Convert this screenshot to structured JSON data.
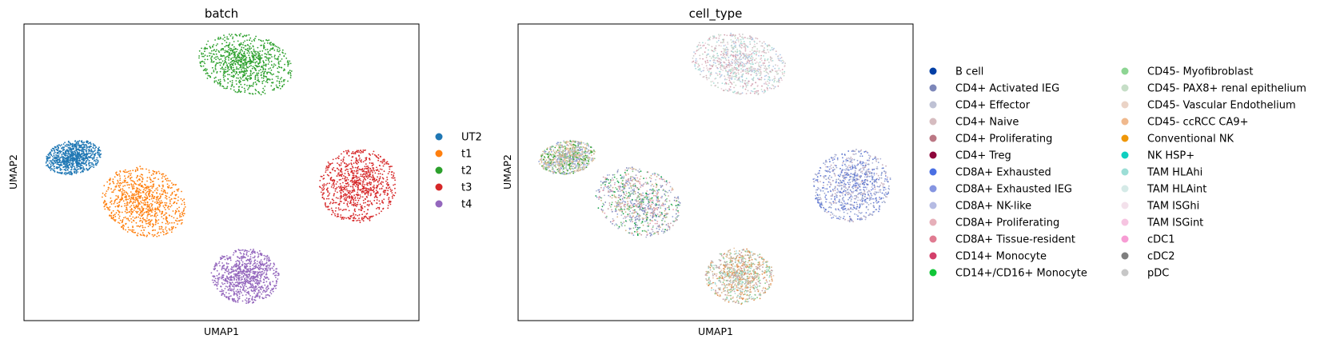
{
  "chart_data": [
    {
      "type": "scatter",
      "title": "batch",
      "xlabel": "UMAP1",
      "ylabel": "UMAP2",
      "grid": false,
      "ticks": false,
      "legend_position": "right",
      "xlim": [
        -10,
        10
      ],
      "ylim": [
        -10,
        10
      ],
      "series": [
        {
          "name": "UT2",
          "color": "#1f77b4",
          "center": [
            -7.5,
            1.0
          ],
          "spread": [
            1.45,
            1.1
          ],
          "tilt": 0.35
        },
        {
          "name": "t1",
          "color": "#ff7f0e",
          "center": [
            -3.9,
            -2.0
          ],
          "spread": [
            2.0,
            2.45
          ],
          "tilt": 0.5
        },
        {
          "name": "t2",
          "color": "#2ca02c",
          "center": [
            1.2,
            7.3
          ],
          "spread": [
            2.45,
            1.95
          ],
          "tilt": -0.45
        },
        {
          "name": "t3",
          "color": "#d62728",
          "center": [
            6.9,
            -0.9
          ],
          "spread": [
            1.95,
            2.45
          ],
          "tilt": -0.1
        },
        {
          "name": "t4",
          "color": "#9467bd",
          "center": [
            1.2,
            -7.0
          ],
          "spread": [
            1.7,
            1.85
          ],
          "tilt": 0.1
        }
      ]
    },
    {
      "type": "scatter",
      "title": "cell_type",
      "xlabel": "UMAP1",
      "ylabel": "UMAP2",
      "grid": false,
      "ticks": false,
      "legend_position": "right",
      "legend_columns": 2,
      "xlim": [
        -10,
        10
      ],
      "ylim": [
        -10,
        10
      ],
      "clusters": [
        {
          "center": [
            -7.5,
            1.0
          ],
          "spread": [
            1.45,
            1.1
          ],
          "tilt": 0.35,
          "palette": [
            "#e8c4a0",
            "#c8b69a",
            "#8ac98a",
            "#8c9fd4",
            "#33a02c",
            "#dcb58f",
            "#b7c7e0"
          ]
        },
        {
          "center": [
            -3.9,
            -2.0
          ],
          "spread": [
            2.0,
            2.45
          ],
          "tilt": 0.5,
          "palette": [
            "#8c9fd4",
            "#c8a0a8",
            "#8ac98a",
            "#d4b48c",
            "#b0b8d0",
            "#e8a0b0",
            "#7d85b8",
            "#17a34a"
          ]
        },
        {
          "center": [
            1.2,
            7.3
          ],
          "spread": [
            2.45,
            1.95
          ],
          "tilt": -0.45,
          "palette": [
            "#c5dcc8",
            "#a6dcd6",
            "#d8b8c0",
            "#c9c9c9",
            "#e8d0d8",
            "#b0c8e8",
            "#d4a0b0"
          ]
        },
        {
          "center": [
            6.9,
            -0.9
          ],
          "spread": [
            1.95,
            2.45
          ],
          "tilt": -0.1,
          "palette": [
            "#6a7fd8",
            "#8c9fd4",
            "#a0a8c8",
            "#b3b8dc",
            "#5570d0",
            "#c8b0c0"
          ]
        },
        {
          "center": [
            1.2,
            -7.0
          ],
          "spread": [
            1.7,
            1.85
          ],
          "tilt": 0.1,
          "palette": [
            "#d4b48c",
            "#e8c4a0",
            "#8ac98a",
            "#c8a0a8",
            "#b0b8b0",
            "#e09050",
            "#a6dcd6"
          ]
        }
      ],
      "legend": [
        {
          "name": "B cell",
          "color": "#023fa5"
        },
        {
          "name": "CD4+ Activated IEG",
          "color": "#7d87b9"
        },
        {
          "name": "CD4+ Effector",
          "color": "#bec1d4"
        },
        {
          "name": "CD4+ Naive",
          "color": "#d6bcc0"
        },
        {
          "name": "CD4+ Proliferating",
          "color": "#bb7784"
        },
        {
          "name": "CD4+ Treg",
          "color": "#8e063b"
        },
        {
          "name": "CD8A+ Exhausted",
          "color": "#4a6fe3"
        },
        {
          "name": "CD8A+ Exhausted IEG",
          "color": "#8595e1"
        },
        {
          "name": "CD8A+ NK-like",
          "color": "#b5bbe3"
        },
        {
          "name": "CD8A+ Proliferating",
          "color": "#e6afb9"
        },
        {
          "name": "CD8A+ Tissue-resident",
          "color": "#e07b91"
        },
        {
          "name": "CD14+ Monocyte",
          "color": "#d33f6a"
        },
        {
          "name": "CD14+/CD16+ Monocyte",
          "color": "#11c638"
        },
        {
          "name": "CD45- Myofibroblast",
          "color": "#8dd593"
        },
        {
          "name": "CD45- PAX8+ renal epithelium",
          "color": "#c6dec7"
        },
        {
          "name": "CD45- Vascular Endothelium",
          "color": "#ead3c6"
        },
        {
          "name": "CD45- ccRCC CA9+",
          "color": "#f0b98d"
        },
        {
          "name": "Conventional NK",
          "color": "#ef9708"
        },
        {
          "name": "NK HSP+",
          "color": "#0fcfc0"
        },
        {
          "name": "TAM HLAhi",
          "color": "#9cded6"
        },
        {
          "name": "TAM HLAint",
          "color": "#d5eae7"
        },
        {
          "name": "TAM ISGhi",
          "color": "#f3e1eb"
        },
        {
          "name": "TAM ISGint",
          "color": "#f6c4e1"
        },
        {
          "name": "cDC1",
          "color": "#f79cd4"
        },
        {
          "name": "cDC2",
          "color": "#7f7f7f"
        },
        {
          "name": "pDC",
          "color": "#c7c7c7"
        }
      ]
    }
  ]
}
